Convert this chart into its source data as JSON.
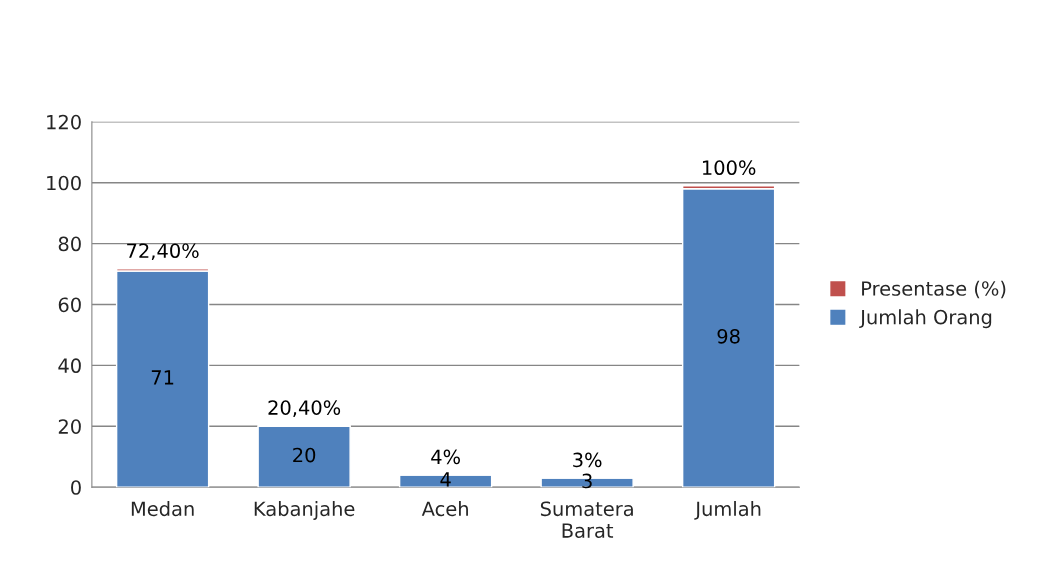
{
  "chart_data": {
    "type": "bar",
    "stacked": true,
    "categories": [
      "Medan",
      "Kabanjahe",
      "Aceh",
      "Sumatera Barat",
      "Jumlah"
    ],
    "series": [
      {
        "name": "Jumlah Orang",
        "color": "#4f81bd",
        "values": [
          71,
          20,
          4,
          3,
          98
        ],
        "value_labels": [
          "71",
          "20",
          "4",
          "3",
          "98"
        ]
      },
      {
        "name": "Presentase (%)",
        "color": "#c0504d",
        "values": [
          0.724,
          0.204,
          0.04,
          0.03,
          1
        ],
        "value_labels": [
          "72,40%",
          "20,40%",
          "4%",
          "3%",
          "100%"
        ]
      }
    ],
    "ylim": [
      0,
      120
    ],
    "yticks": [
      0,
      20,
      40,
      60,
      80,
      100,
      120
    ],
    "grid": "y",
    "legend": "right"
  }
}
